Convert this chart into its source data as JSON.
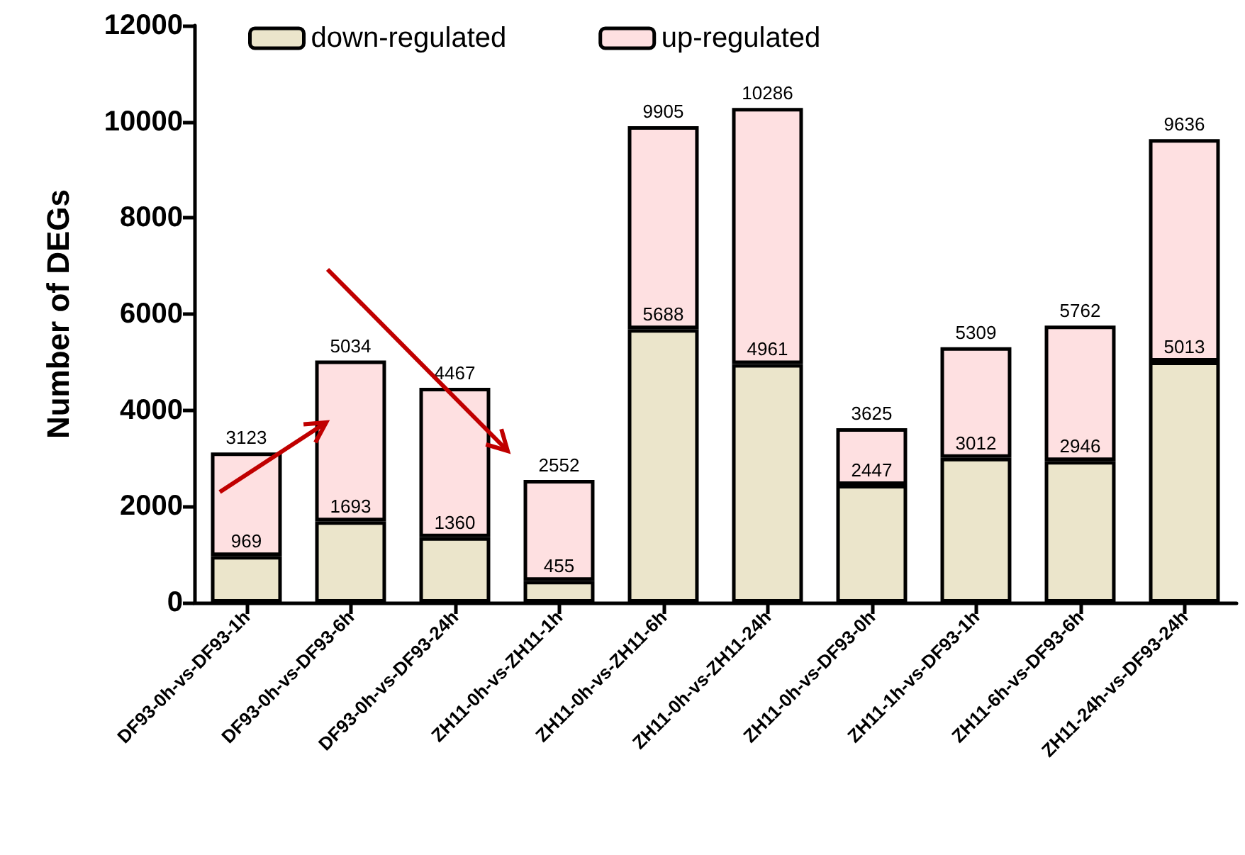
{
  "chart_data": {
    "type": "bar",
    "stacked": true,
    "ylabel": "Number of DEGs",
    "categories": [
      "DF93-0h-vs-DF93-1h",
      "DF93-0h-vs-DF93-6h",
      "DF93-0h-vs-DF93-24h",
      "ZH11-0h-vs-ZH11-1h",
      "ZH11-0h-vs-ZH11-6h",
      "ZH11-0h-vs-ZH11-24h",
      "ZH11-0h-vs-DF93-0h",
      "ZH11-1h-vs-DF93-1h",
      "ZH11-6h-vs-DF93-6h",
      "ZH11-24h-vs-DF93-24h"
    ],
    "series": [
      {
        "name": "down-regulated",
        "color": "#ebe5cb",
        "values": [
          969,
          1693,
          1360,
          455,
          5688,
          4961,
          2447,
          3012,
          2946,
          5013
        ],
        "value_labels": [
          "969",
          "1693",
          "1360",
          "455",
          "5688",
          "4961",
          "2447",
          "3012",
          "2946",
          "5013"
        ]
      },
      {
        "name": "up-regulated",
        "color": "#fee0e1",
        "values": [
          2154,
          3341,
          3107,
          2097,
          4217,
          5325,
          1178,
          2297,
          2816,
          4623
        ]
      }
    ],
    "totals": [
      "3123",
      "5034",
      "4467",
      "2552",
      "9905",
      "10286",
      "3625",
      "5309",
      "5762",
      "9636"
    ],
    "ylim": [
      0,
      12000
    ],
    "yticks": [
      0,
      2000,
      4000,
      6000,
      8000,
      10000,
      12000
    ],
    "grid": false,
    "legend": "top"
  }
}
